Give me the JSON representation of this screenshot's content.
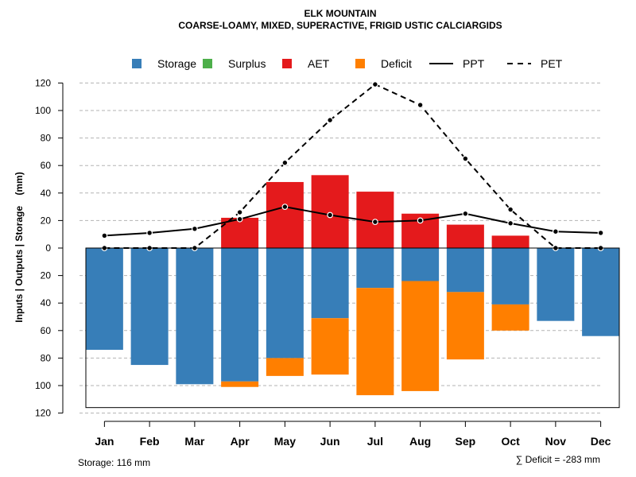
{
  "chart_data": {
    "type": "bar",
    "title": "ELK MOUNTAIN",
    "subtitle": "COARSE-LOAMY, MIXED, SUPERACTIVE, FRIGID USTIC CALCIARGIDS",
    "ylabel": "Inputs | Outputs | Storage    (mm)",
    "categories": [
      "Jan",
      "Feb",
      "Mar",
      "Apr",
      "May",
      "Jun",
      "Jul",
      "Aug",
      "Sep",
      "Oct",
      "Nov",
      "Dec"
    ],
    "y_ticks": [
      "120",
      "100",
      "80",
      "60",
      "40",
      "20",
      "0",
      "20",
      "40",
      "60",
      "80",
      "100",
      "120"
    ],
    "ylim": [
      -120,
      120
    ],
    "legend": [
      {
        "name": "Storage",
        "kind": "box",
        "color": "#377eb8"
      },
      {
        "name": "Surplus",
        "kind": "box",
        "color": "#4daf4a"
      },
      {
        "name": "AET",
        "kind": "box",
        "color": "#e41a1c"
      },
      {
        "name": "Deficit",
        "kind": "box",
        "color": "#ff7f00"
      },
      {
        "name": "PPT",
        "kind": "line",
        "color": "#000000"
      },
      {
        "name": "PET",
        "kind": "dashed",
        "color": "#000000"
      }
    ],
    "series": [
      {
        "name": "AET",
        "values": [
          0,
          0,
          0,
          22,
          48,
          53,
          41,
          25,
          17,
          9,
          0,
          0
        ]
      },
      {
        "name": "Storage",
        "values": [
          74,
          85,
          99,
          97,
          80,
          51,
          29,
          24,
          32,
          41,
          53,
          64
        ]
      },
      {
        "name": "Deficit",
        "values": [
          0,
          0,
          0,
          4,
          13,
          41,
          78,
          80,
          49,
          19,
          0,
          0
        ]
      },
      {
        "name": "Surplus",
        "values": [
          0,
          0,
          0,
          0,
          0,
          0,
          0,
          0,
          0,
          0,
          0,
          0
        ]
      },
      {
        "name": "PPT",
        "values": [
          9,
          11,
          14,
          21,
          30,
          24,
          19,
          20,
          25,
          18,
          12,
          11
        ]
      },
      {
        "name": "PET",
        "values": [
          0,
          0,
          0,
          26,
          62,
          93,
          119,
          104,
          65,
          28,
          0,
          0
        ]
      }
    ],
    "storage_capacity": 116,
    "footer_left": "Storage: 116 mm",
    "footer_right": "∑ Deficit = -283 mm"
  }
}
